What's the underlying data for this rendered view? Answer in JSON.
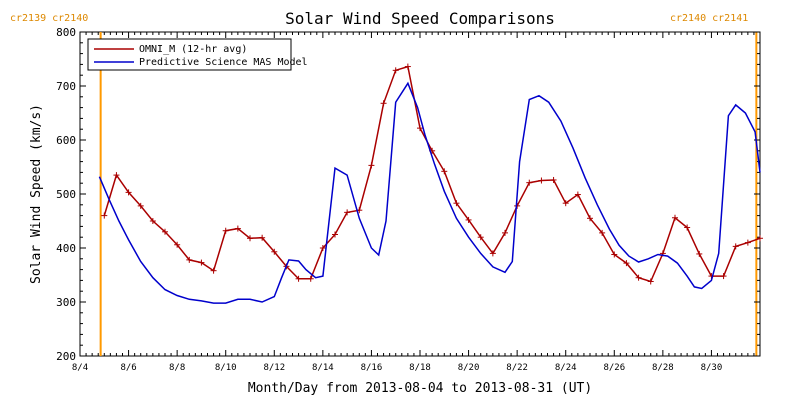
{
  "chart_data": {
    "type": "line",
    "title": "Solar Wind Speed Comparisons",
    "xlabel": "Month/Day from 2013-08-04 to 2013-08-31 (UT)",
    "ylabel": "Solar Wind Speed (km/s)",
    "xlim": [
      4.0,
      32.0
    ],
    "ylim": [
      200,
      800
    ],
    "yticks": [
      200,
      300,
      400,
      500,
      600,
      700,
      800
    ],
    "xticks": [
      {
        "x": 4,
        "label": "8/4"
      },
      {
        "x": 6,
        "label": "8/6"
      },
      {
        "x": 8,
        "label": "8/8"
      },
      {
        "x": 10,
        "label": "8/10"
      },
      {
        "x": 12,
        "label": "8/12"
      },
      {
        "x": 14,
        "label": "8/14"
      },
      {
        "x": 16,
        "label": "8/16"
      },
      {
        "x": 18,
        "label": "8/18"
      },
      {
        "x": 20,
        "label": "8/20"
      },
      {
        "x": 22,
        "label": "8/22"
      },
      {
        "x": 24,
        "label": "8/24"
      },
      {
        "x": 26,
        "label": "8/26"
      },
      {
        "x": 28,
        "label": "8/28"
      },
      {
        "x": 30,
        "label": "8/30"
      }
    ],
    "carrington_lines": [
      {
        "x": 4.85,
        "label": "cr2139 cr2140",
        "side": "left"
      },
      {
        "x": 31.85,
        "label": "cr2140 cr2141",
        "side": "right"
      }
    ],
    "legend_position": "top-left",
    "series": [
      {
        "name": "OMNI_M (12-hr avg)",
        "color": "#aa0000",
        "marker": "+",
        "x": [
          5.0,
          5.5,
          6.0,
          6.5,
          7.0,
          7.5,
          8.0,
          8.5,
          9.0,
          9.5,
          10.0,
          10.5,
          11.0,
          11.5,
          12.0,
          12.5,
          13.0,
          13.5,
          14.0,
          14.5,
          15.0,
          15.5,
          16.0,
          16.5,
          17.0,
          17.5,
          18.0,
          18.5,
          19.0,
          19.5,
          20.0,
          20.5,
          21.0,
          21.5,
          22.0,
          22.5,
          23.0,
          23.5,
          24.0,
          24.5,
          25.0,
          25.5,
          26.0,
          26.5,
          27.0,
          27.5,
          28.0,
          28.5,
          29.0,
          29.5,
          30.0,
          30.5,
          31.0,
          31.5,
          32.0
        ],
        "y": [
          460,
          535,
          503,
          478,
          450,
          430,
          406,
          378,
          373,
          358,
          432,
          436,
          418,
          419,
          393,
          366,
          343,
          343,
          400,
          425,
          466,
          470,
          553,
          668,
          729,
          736,
          622,
          580,
          542,
          483,
          452,
          420,
          390,
          428,
          478,
          521,
          525,
          526,
          483,
          499,
          455,
          428,
          388,
          372,
          345,
          338,
          390,
          456,
          438,
          389,
          348,
          348,
          403,
          410,
          418
        ]
      },
      {
        "name": "Predictive Science MAS Model",
        "color": "#0000cc",
        "marker": "",
        "x": [
          4.8,
          5.2,
          5.6,
          6.0,
          6.5,
          7.0,
          7.5,
          8.0,
          8.5,
          9.0,
          9.5,
          10.0,
          10.5,
          11.0,
          11.5,
          12.0,
          12.3,
          12.6,
          13.0,
          13.3,
          13.7,
          14.0,
          14.5,
          15.0,
          15.5,
          16.0,
          16.3,
          16.6,
          17.0,
          17.5,
          17.9,
          18.2,
          18.6,
          19.0,
          19.5,
          20.0,
          20.5,
          21.0,
          21.5,
          21.8,
          22.1,
          22.5,
          22.9,
          23.3,
          23.8,
          24.3,
          24.8,
          25.3,
          25.8,
          26.2,
          26.6,
          27.0,
          27.4,
          27.8,
          28.2,
          28.6,
          29.0,
          29.3,
          29.6,
          30.0,
          30.3,
          30.7,
          31.0,
          31.4,
          31.8,
          32.0
        ],
        "y": [
          532,
          490,
          450,
          415,
          375,
          345,
          323,
          312,
          305,
          302,
          298,
          298,
          305,
          305,
          300,
          310,
          345,
          378,
          376,
          360,
          345,
          348,
          548,
          535,
          455,
          400,
          387,
          450,
          670,
          705,
          660,
          610,
          555,
          505,
          455,
          420,
          390,
          365,
          355,
          375,
          560,
          675,
          682,
          670,
          635,
          585,
          530,
          480,
          435,
          405,
          385,
          374,
          380,
          388,
          385,
          372,
          348,
          328,
          325,
          340,
          390,
          645,
          665,
          650,
          615,
          540
        ]
      }
    ]
  }
}
